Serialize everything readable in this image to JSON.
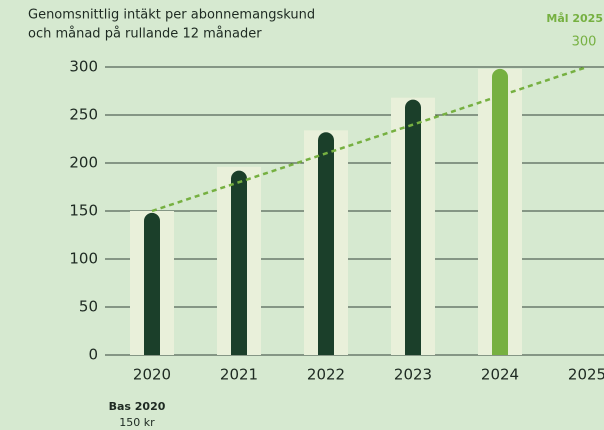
{
  "chart_data": {
    "type": "bar",
    "title": [
      "Genomsnittlig intäkt per abonnemangskund",
      "och månad på rullande 12 månader"
    ],
    "categories": [
      "2020",
      "2021",
      "2022",
      "2023",
      "2024",
      "2025"
    ],
    "series": [
      {
        "color": "#e9f0da",
        "values": [
          150,
          196,
          234,
          268,
          298,
          null
        ]
      },
      {
        "colors": [
          "#1b3f2a",
          "#1b3f2a",
          "#1b3f2a",
          "#1b3f2a",
          "#76b041",
          null
        ],
        "values": [
          148,
          192,
          232,
          266,
          298,
          null
        ]
      }
    ],
    "target_line": {
      "color": "#76b041",
      "categories": [
        "2020",
        "2025"
      ],
      "values": [
        150,
        300
      ]
    },
    "annotations": [
      {
        "title": "Bas 2020",
        "value": 150,
        "label": "150 kr"
      },
      {
        "title": "Mål 2025",
        "value": 300
      }
    ],
    "ylim": [
      0,
      300
    ],
    "yticks": [
      0,
      50,
      100,
      150,
      200,
      250,
      300
    ],
    "grid": true
  }
}
